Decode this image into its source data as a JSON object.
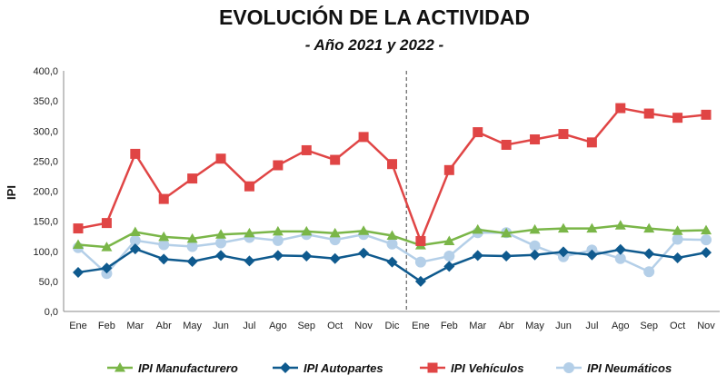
{
  "chart_data": {
    "type": "line",
    "title": "EVOLUCIÓN DE LA ACTIVIDAD",
    "subtitle": "- Año 2021 y 2022 -",
    "ylabel": "IPI",
    "xlabel": "",
    "ylim": [
      0,
      400
    ],
    "yticks": [
      "0,0",
      "50,0",
      "100,0",
      "150,0",
      "200,0",
      "250,0",
      "300,0",
      "350,0",
      "400,0"
    ],
    "grid": false,
    "legend": "bottom",
    "year_divider_after": "Dic",
    "categories": [
      "Ene",
      "Feb",
      "Mar",
      "Abr",
      "May",
      "Jun",
      "Jul",
      "Ago",
      "Sep",
      "Oct",
      "Nov",
      "Dic",
      "Ene",
      "Feb",
      "Mar",
      "Abr",
      "May",
      "Jun",
      "Jul",
      "Ago",
      "Sep",
      "Oct",
      "Nov"
    ],
    "series": [
      {
        "name": "IPI Manufacturero",
        "color": "#7ab648",
        "marker": "triangle",
        "values": [
          111,
          107,
          132,
          124,
          121,
          128,
          130,
          133,
          133,
          130,
          134,
          126,
          110,
          117,
          136,
          130,
          136,
          138,
          138,
          143,
          138,
          134,
          135
        ]
      },
      {
        "name": "IPI Autopartes",
        "color": "#0f5a8e",
        "marker": "diamond",
        "values": [
          65,
          72,
          104,
          87,
          83,
          93,
          84,
          93,
          92,
          88,
          97,
          82,
          50,
          75,
          93,
          92,
          94,
          99,
          94,
          103,
          96,
          89,
          98
        ]
      },
      {
        "name": "IPI Vehículos",
        "color": "#e04545",
        "marker": "square",
        "values": [
          138,
          147,
          262,
          187,
          221,
          254,
          208,
          243,
          268,
          252,
          290,
          245,
          117,
          235,
          298,
          277,
          286,
          295,
          281,
          338,
          329,
          322,
          327
        ]
      },
      {
        "name": "IPI Neumáticos",
        "color": "#b4cfe8",
        "marker": "circle",
        "values": [
          106,
          63,
          118,
          111,
          108,
          114,
          123,
          118,
          128,
          119,
          128,
          112,
          82,
          92,
          131,
          131,
          109,
          91,
          102,
          88,
          66,
          120,
          119
        ]
      }
    ]
  }
}
